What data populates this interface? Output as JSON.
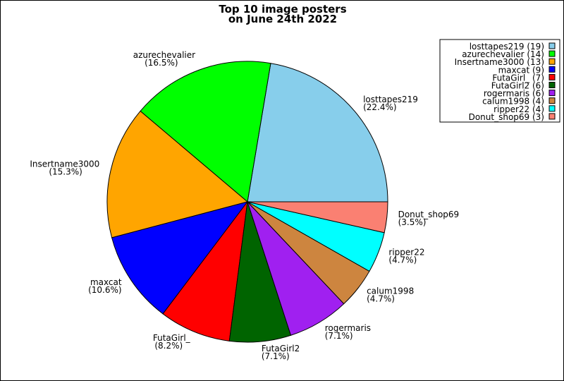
{
  "chart_data": {
    "type": "pie",
    "title_lines": [
      "Top 10 image posters",
      "on June 24th 2022"
    ],
    "slices": [
      {
        "label": "losttapes219",
        "value": 19,
        "pct": "22.4%",
        "color": "#87ceeb"
      },
      {
        "label": "azurechevalier",
        "value": 14,
        "pct": "16.5%",
        "color": "#00ff00"
      },
      {
        "label": "Insertname3000",
        "value": 13,
        "pct": "15.3%",
        "color": "#ffa500"
      },
      {
        "label": "maxcat",
        "value": 9,
        "pct": "10.6%",
        "color": "#0000ff"
      },
      {
        "label": "FutaGirl_",
        "value": 7,
        "pct": "8.2%",
        "color": "#ff0000"
      },
      {
        "label": "FutaGirl2",
        "value": 6,
        "pct": "7.1%",
        "color": "#006400"
      },
      {
        "label": "rogermaris",
        "value": 6,
        "pct": "7.1%",
        "color": "#a020f0"
      },
      {
        "label": "calum1998",
        "value": 4,
        "pct": "4.7%",
        "color": "#cd853f"
      },
      {
        "label": "ripper22",
        "value": 4,
        "pct": "4.7%",
        "color": "#00ffff"
      },
      {
        "label": "Donut_shop69",
        "value": 3,
        "pct": "3.5%",
        "color": "#fa8072"
      }
    ],
    "legend_placement": "top-right",
    "start_angle": "east, counterclockwise"
  }
}
